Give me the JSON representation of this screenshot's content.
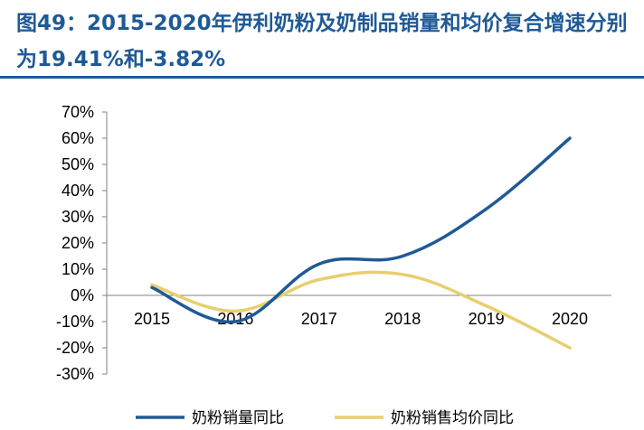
{
  "title": "图49：2015-2020年伊利奶粉及奶制品销量和均价复合增速分别为19.41%和-3.82%",
  "chart_data": {
    "type": "line",
    "x": [
      "2015",
      "2016",
      "2017",
      "2018",
      "2019",
      "2020"
    ],
    "series": [
      {
        "name": "奶粉销量同比",
        "color": "#1f5a96",
        "values": [
          3,
          -10,
          12,
          15,
          33,
          60
        ]
      },
      {
        "name": "奶粉销售均价同比",
        "color": "#e8cf6e",
        "values": [
          4,
          -6,
          6,
          8,
          -4,
          -20
        ]
      }
    ],
    "y_ticks": [
      "70%",
      "60%",
      "50%",
      "40%",
      "30%",
      "20%",
      "10%",
      "0%",
      "-10%",
      "-20%",
      "-30%"
    ],
    "ylim": [
      -30,
      70
    ],
    "y_unit": "%",
    "grid": false,
    "legend_position": "bottom"
  }
}
